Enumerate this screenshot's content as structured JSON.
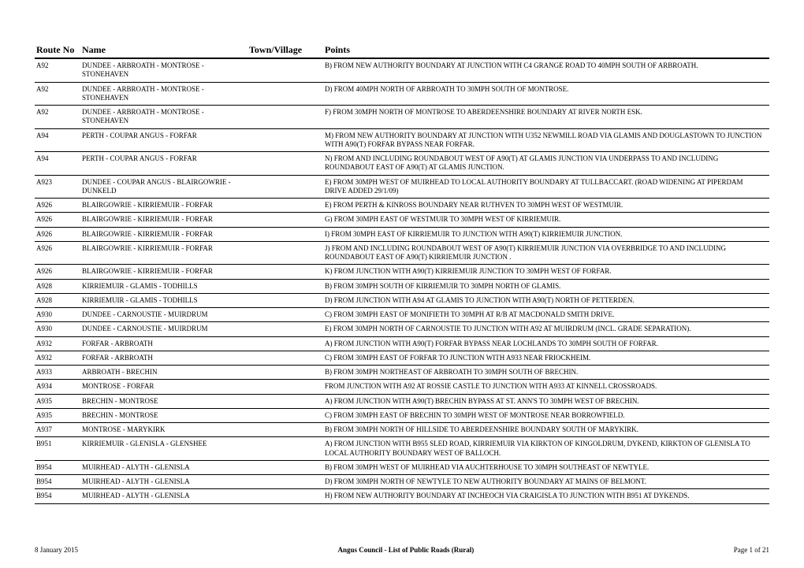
{
  "headers": {
    "route": "Route No",
    "name": "Name",
    "town": "Town/Village",
    "points": "Points"
  },
  "rows": [
    {
      "route": "A92",
      "name": "DUNDEE - ARBROATH - MONTROSE - STONEHAVEN",
      "town": "",
      "points": "B) FROM NEW AUTHORITY BOUNDARY AT JUNCTION WITH C4 GRANGE ROAD TO 40MPH SOUTH OF ARBROATH."
    },
    {
      "route": "A92",
      "name": "DUNDEE - ARBROATH - MONTROSE - STONEHAVEN",
      "town": "",
      "points": "D) FROM 40MPH NORTH OF ARBROATH TO 30MPH SOUTH OF MONTROSE."
    },
    {
      "route": "A92",
      "name": "DUNDEE - ARBROATH - MONTROSE - STONEHAVEN",
      "town": "",
      "points": "F) FROM 30MPH NORTH OF MONTROSE TO ABERDEENSHIRE BOUNDARY AT RIVER NORTH ESK."
    },
    {
      "route": "A94",
      "name": "PERTH - COUPAR ANGUS - FORFAR",
      "town": "",
      "points": "M) FROM NEW AUTHORITY BOUNDARY AT JUNCTION WITH U352 NEWMILL ROAD VIA GLAMIS AND DOUGLASTOWN TO JUNCTION WITH A90(T) FORFAR BYPASS NEAR FORFAR."
    },
    {
      "route": "A94",
      "name": "PERTH - COUPAR ANGUS - FORFAR",
      "town": "",
      "points": "N) FROM AND INCLUDING ROUNDABOUT WEST OF A90(T) AT GLAMIS JUNCTION VIA UNDERPASS TO AND INCLUDING ROUNDABOUT EAST OF A90(T) AT GLAMIS JUNCTION."
    },
    {
      "route": "A923",
      "name": "DUNDEE - COUPAR ANGUS - BLAIRGOWRIE - DUNKELD",
      "town": "",
      "points": "E) FROM 30MPH WEST OF MUIRHEAD TO LOCAL AUTHORITY BOUNDARY AT TULLBACCART. (ROAD WIDENING AT PIPERDAM DRIVE ADDED 29/1/09)"
    },
    {
      "route": "A926",
      "name": "BLAIRGOWRIE - KIRRIEMUIR - FORFAR",
      "town": "",
      "points": "E) FROM PERTH & KINROSS BOUNDARY NEAR RUTHVEN TO 30MPH WEST OF WESTMUIR."
    },
    {
      "route": "A926",
      "name": "BLAIRGOWRIE - KIRRIEMUIR - FORFAR",
      "town": "",
      "points": "G) FROM 30MPH EAST OF WESTMUIR TO 30MPH WEST OF KIRRIEMUIR."
    },
    {
      "route": "A926",
      "name": "BLAIRGOWRIE - KIRRIEMUIR - FORFAR",
      "town": "",
      "points": "I) FROM 30MPH EAST OF KIRRIEMUIR TO JUNCTION WITH A90(T) KIRRIEMUIR JUNCTION."
    },
    {
      "route": "A926",
      "name": "BLAIRGOWRIE - KIRRIEMUIR - FORFAR",
      "town": "",
      "points": "J) FROM AND INCLUDING ROUNDABOUT WEST OF A90(T) KIRRIEMUIR JUNCTION VIA OVERBRIDGE TO AND INCLUDING ROUNDABOUT EAST OF A90(T) KIRRIEMUIR JUNCTION ."
    },
    {
      "route": "A926",
      "name": "BLAIRGOWRIE - KIRRIEMUIR - FORFAR",
      "town": "",
      "points": "K) FROM JUNCTION WITH A90(T) KIRRIEMUIR JUNCTION TO 30MPH WEST OF FORFAR."
    },
    {
      "route": "A928",
      "name": "KIRRIEMUIR - GLAMIS - TODHILLS",
      "town": "",
      "points": "B) FROM 30MPH SOUTH OF KIRRIEMUIR TO 30MPH NORTH OF GLAMIS."
    },
    {
      "route": "A928",
      "name": "KIRRIEMUIR - GLAMIS - TODHILLS",
      "town": "",
      "points": "D) FROM JUNCTION WITH A94 AT GLAMIS TO JUNCTION WITH A90(T) NORTH OF PETTERDEN."
    },
    {
      "route": "A930",
      "name": "DUNDEE - CARNOUSTIE - MUIRDRUM",
      "town": "",
      "points": "C) FROM 30MPH EAST OF MONIFIETH TO 30MPH AT R/B AT MACDONALD SMITH DRIVE."
    },
    {
      "route": "A930",
      "name": "DUNDEE - CARNOUSTIE - MUIRDRUM",
      "town": "",
      "points": "E) FROM 30MPH NORTH OF CARNOUSTIE TO JUNCTION WITH A92 AT MUIRDRUM (INCL. GRADE SEPARATION)."
    },
    {
      "route": "A932",
      "name": "FORFAR - ARBROATH",
      "town": "",
      "points": "A) FROM JUNCTION WITH A90(T) FORFAR BYPASS NEAR LOCHLANDS TO 30MPH SOUTH OF FORFAR."
    },
    {
      "route": "A932",
      "name": "FORFAR - ARBROATH",
      "town": "",
      "points": "C) FROM 30MPH EAST OF FORFAR TO JUNCTION WITH A933 NEAR FRIOCKHEIM."
    },
    {
      "route": "A933",
      "name": "ARBROATH - BRECHIN",
      "town": "",
      "points": "B) FROM 30MPH NORTHEAST OF ARBROATH TO 30MPH SOUTH OF BRECHIN."
    },
    {
      "route": "A934",
      "name": "MONTROSE - FORFAR",
      "town": "",
      "points": "FROM JUNCTION WITH A92 AT ROSSIE CASTLE TO JUNCTION WITH A933 AT KINNELL CROSSROADS."
    },
    {
      "route": "A935",
      "name": "BRECHIN - MONTROSE",
      "town": "",
      "points": "A) FROM JUNCTION WITH A90(T) BRECHIN BYPASS AT ST. ANN'S TO 30MPH WEST OF BRECHIN."
    },
    {
      "route": "A935",
      "name": "BRECHIN - MONTROSE",
      "town": "",
      "points": "C) FROM 30MPH EAST OF BRECHIN TO 30MPH WEST OF MONTROSE NEAR BORROWFIELD."
    },
    {
      "route": "A937",
      "name": "MONTROSE - MARYKIRK",
      "town": "",
      "points": "B) FROM 30MPH NORTH OF HILLSIDE TO ABERDEENSHIRE BOUNDARY SOUTH OF MARYKIRK."
    },
    {
      "route": "B951",
      "name": "KIRRIEMUIR - GLENISLA - GLENSHEE",
      "town": "",
      "points": "A) FROM JUNCTION WITH B955 SLED ROAD, KIRRIEMUIR VIA KIRKTON OF KINGOLDRUM, DYKEND, KIRKTON OF GLENISLA TO LOCAL AUTHORITY BOUNDARY WEST OF BALLOCH."
    },
    {
      "route": "B954",
      "name": "MUIRHEAD - ALYTH - GLENISLA",
      "town": "",
      "points": "B) FROM 30MPH WEST OF MUIRHEAD VIA AUCHTERHOUSE TO 30MPH SOUTHEAST OF NEWTYLE."
    },
    {
      "route": "B954",
      "name": "MUIRHEAD - ALYTH - GLENISLA",
      "town": "",
      "points": "D) FROM 30MPH NORTH OF NEWTYLE TO NEW AUTHORITY BOUNDARY AT MAINS OF BELMONT."
    },
    {
      "route": "B954",
      "name": "MUIRHEAD - ALYTH - GLENISLA",
      "town": "",
      "points": "H) FROM NEW AUTHORITY BOUNDARY AT INCHEOCH VIA CRAIGISLA TO JUNCTION WITH B951 AT DYKENDS."
    }
  ],
  "footer": {
    "left": "8 January 2015",
    "center": "Angus Council - List of Public Roads (Rural)",
    "right": "Page 1 of 21"
  }
}
